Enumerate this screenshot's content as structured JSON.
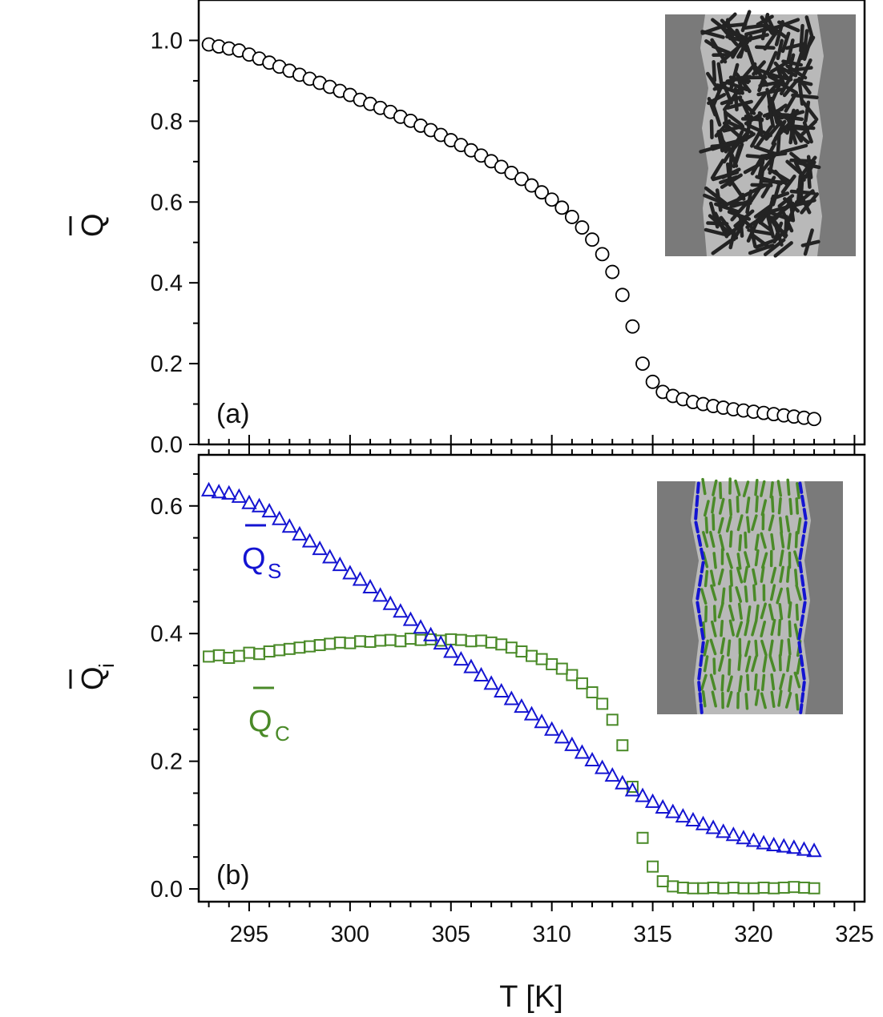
{
  "chart_data": [
    {
      "panel": "a",
      "type": "scatter",
      "panel_label": "(a)",
      "ylabel": "Q",
      "xlabel": "",
      "xlim": [
        292.5,
        325.5
      ],
      "ylim": [
        0.0,
        1.1
      ],
      "yticks": [
        "0.0",
        "0.2",
        "0.4",
        "0.6",
        "0.8",
        "1.0"
      ],
      "series": [
        {
          "name": "Q",
          "marker": "circle",
          "color": "#000000",
          "x": [
            293.0,
            293.5,
            294.0,
            294.5,
            295.0,
            295.5,
            296.0,
            296.5,
            297.0,
            297.5,
            298.0,
            298.5,
            299.0,
            299.5,
            300.0,
            300.5,
            301.0,
            301.5,
            302.0,
            302.5,
            303.0,
            303.5,
            304.0,
            304.5,
            305.0,
            305.5,
            306.0,
            306.5,
            307.0,
            307.5,
            308.0,
            308.5,
            309.0,
            309.5,
            310.0,
            310.5,
            311.0,
            311.5,
            312.0,
            312.5,
            313.0,
            313.5,
            314.0,
            314.5,
            315.0,
            315.5,
            316.0,
            316.5,
            317.0,
            317.5,
            318.0,
            318.5,
            319.0,
            319.5,
            320.0,
            320.5,
            321.0,
            321.5,
            322.0,
            322.5,
            323.0
          ],
          "y": [
            0.99,
            0.985,
            0.98,
            0.975,
            0.965,
            0.955,
            0.945,
            0.935,
            0.925,
            0.915,
            0.905,
            0.895,
            0.885,
            0.875,
            0.865,
            0.853,
            0.843,
            0.833,
            0.823,
            0.811,
            0.801,
            0.789,
            0.778,
            0.766,
            0.753,
            0.741,
            0.728,
            0.715,
            0.701,
            0.687,
            0.672,
            0.657,
            0.641,
            0.624,
            0.606,
            0.586,
            0.563,
            0.537,
            0.507,
            0.471,
            0.427,
            0.37,
            0.292,
            0.2,
            0.155,
            0.13,
            0.12,
            0.112,
            0.105,
            0.1,
            0.095,
            0.091,
            0.087,
            0.084,
            0.081,
            0.078,
            0.075,
            0.072,
            0.069,
            0.066,
            0.063
          ]
        }
      ]
    },
    {
      "panel": "b",
      "type": "scatter",
      "panel_label": "(b)",
      "ylabel": "Q",
      "ylabel_sub": "i",
      "xlabel": "T [K]",
      "xlim": [
        292.5,
        325.5
      ],
      "ylim": [
        -0.02,
        0.68
      ],
      "yticks": [
        "0.0",
        "0.2",
        "0.4",
        "0.6"
      ],
      "xticks": [
        "295",
        "300",
        "305",
        "310",
        "315",
        "320",
        "325"
      ],
      "series": [
        {
          "name": "Q_S",
          "label": "Q",
          "label_sub": "S",
          "marker": "triangle",
          "color": "#1414d2",
          "x": [
            293.0,
            293.5,
            294.0,
            294.5,
            295.0,
            295.5,
            296.0,
            296.5,
            297.0,
            297.5,
            298.0,
            298.5,
            299.0,
            299.5,
            300.0,
            300.5,
            301.0,
            301.5,
            302.0,
            302.5,
            303.0,
            303.5,
            304.0,
            304.5,
            305.0,
            305.5,
            306.0,
            306.5,
            307.0,
            307.5,
            308.0,
            308.5,
            309.0,
            309.5,
            310.0,
            310.5,
            311.0,
            311.5,
            312.0,
            312.5,
            313.0,
            313.5,
            314.0,
            314.5,
            315.0,
            315.5,
            316.0,
            316.5,
            317.0,
            317.5,
            318.0,
            318.5,
            319.0,
            319.5,
            320.0,
            320.5,
            321.0,
            321.5,
            322.0,
            322.5,
            323.0
          ],
          "y": [
            0.625,
            0.622,
            0.62,
            0.615,
            0.605,
            0.6,
            0.592,
            0.58,
            0.568,
            0.556,
            0.545,
            0.533,
            0.52,
            0.508,
            0.495,
            0.485,
            0.473,
            0.46,
            0.447,
            0.435,
            0.422,
            0.41,
            0.398,
            0.385,
            0.372,
            0.36,
            0.348,
            0.335,
            0.322,
            0.31,
            0.298,
            0.286,
            0.274,
            0.262,
            0.25,
            0.238,
            0.226,
            0.214,
            0.202,
            0.19,
            0.178,
            0.166,
            0.155,
            0.146,
            0.137,
            0.128,
            0.121,
            0.114,
            0.108,
            0.102,
            0.096,
            0.09,
            0.085,
            0.08,
            0.076,
            0.072,
            0.069,
            0.067,
            0.065,
            0.062,
            0.06
          ]
        },
        {
          "name": "Q_C",
          "label": "Q",
          "label_sub": "C",
          "marker": "square",
          "color": "#4a8a28",
          "x": [
            293.0,
            293.5,
            294.0,
            294.5,
            295.0,
            295.5,
            296.0,
            296.5,
            297.0,
            297.5,
            298.0,
            298.5,
            299.0,
            299.5,
            300.0,
            300.5,
            301.0,
            301.5,
            302.0,
            302.5,
            303.0,
            303.5,
            304.0,
            304.5,
            305.0,
            305.5,
            306.0,
            306.5,
            307.0,
            307.5,
            308.0,
            308.5,
            309.0,
            309.5,
            310.0,
            310.5,
            311.0,
            311.5,
            312.0,
            312.5,
            313.0,
            313.5,
            314.0,
            314.5,
            315.0,
            315.5,
            316.0,
            316.5,
            317.0,
            317.5,
            318.0,
            318.5,
            319.0,
            319.5,
            320.0,
            320.5,
            321.0,
            321.5,
            322.0,
            322.5,
            323.0
          ],
          "y": [
            0.364,
            0.366,
            0.362,
            0.365,
            0.37,
            0.368,
            0.372,
            0.374,
            0.376,
            0.378,
            0.38,
            0.382,
            0.384,
            0.386,
            0.385,
            0.388,
            0.387,
            0.389,
            0.39,
            0.388,
            0.392,
            0.39,
            0.391,
            0.389,
            0.391,
            0.39,
            0.388,
            0.389,
            0.386,
            0.383,
            0.378,
            0.372,
            0.365,
            0.36,
            0.352,
            0.345,
            0.335,
            0.322,
            0.308,
            0.29,
            0.265,
            0.225,
            0.16,
            0.08,
            0.035,
            0.012,
            0.004,
            0.002,
            0.001,
            0.001,
            0.002,
            0.001,
            0.002,
            0.001,
            0.001,
            0.002,
            0.001,
            0.002,
            0.003,
            0.002,
            0.001
          ]
        }
      ]
    }
  ]
}
